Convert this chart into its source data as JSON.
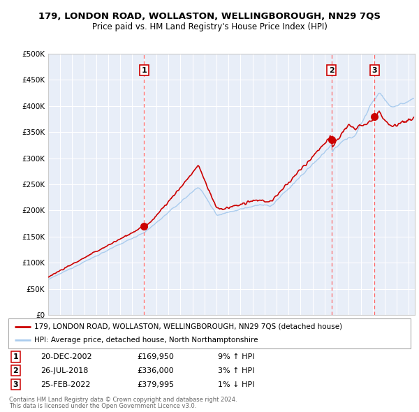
{
  "title": "179, LONDON ROAD, WOLLASTON, WELLINGBOROUGH, NN29 7QS",
  "subtitle": "Price paid vs. HM Land Registry's House Price Index (HPI)",
  "legend_line1": "179, LONDON ROAD, WOLLASTON, WELLINGBOROUGH, NN29 7QS (detached house)",
  "legend_line2": "HPI: Average price, detached house, North Northamptonshire",
  "footer1": "Contains HM Land Registry data © Crown copyright and database right 2024.",
  "footer2": "This data is licensed under the Open Government Licence v3.0.",
  "transactions": [
    {
      "num": 1,
      "date": "20-DEC-2002",
      "price": "£169,950",
      "pct": "9% ↑ HPI"
    },
    {
      "num": 2,
      "date": "26-JUL-2018",
      "price": "£336,000",
      "pct": "3% ↑ HPI"
    },
    {
      "num": 3,
      "date": "25-FEB-2022",
      "price": "£379,995",
      "pct": "1% ↓ HPI"
    }
  ],
  "transaction_years": [
    2002.97,
    2018.57,
    2022.15
  ],
  "transaction_prices": [
    169950,
    336000,
    379995
  ],
  "ylim": [
    0,
    500000
  ],
  "yticks": [
    0,
    50000,
    100000,
    150000,
    200000,
    250000,
    300000,
    350000,
    400000,
    450000,
    500000
  ],
  "xlim_start": 1995.0,
  "xlim_end": 2025.5,
  "bg_color": "#e8eef8",
  "grid_color": "#ffffff",
  "red_line_color": "#cc0000",
  "blue_line_color": "#aaccee",
  "marker_color": "#cc0000",
  "vline_color": "#ff6666",
  "box_edge_color": "#cc0000",
  "legend_border_color": "#aaaaaa",
  "footer_color": "#666666"
}
